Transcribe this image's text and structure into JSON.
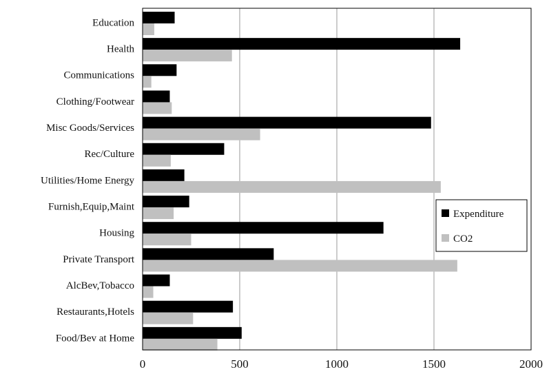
{
  "chart_data": {
    "type": "bar",
    "orientation": "horizontal",
    "title": "",
    "xlabel": "",
    "ylabel": "",
    "xlim": [
      0,
      2000
    ],
    "x_ticks": [
      0,
      500,
      1000,
      1500,
      2000
    ],
    "grid": "vertical",
    "legend_position": "right",
    "categories": [
      "Education",
      "Health",
      "Communications",
      "Clothing/Footwear",
      "Misc Goods/Services",
      "Rec/Culture",
      "Utilities/Home Energy",
      "Furnish,Equip,Maint",
      "Housing",
      "Private Transport",
      "AlcBev,Tobacco",
      "Restaurants,Hotels",
      "Food/Bev at Home"
    ],
    "series": [
      {
        "name": "Expenditure",
        "color": "#000000",
        "values": [
          165,
          1635,
          175,
          140,
          1485,
          420,
          215,
          240,
          1240,
          675,
          140,
          465,
          510
        ]
      },
      {
        "name": "CO2",
        "color": "#c0c0c0",
        "values": [
          60,
          460,
          45,
          150,
          605,
          145,
          1535,
          160,
          250,
          1620,
          55,
          260,
          385
        ]
      }
    ]
  }
}
